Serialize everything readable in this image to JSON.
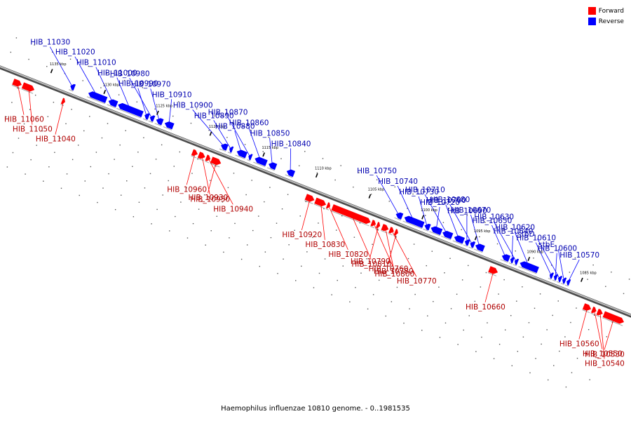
{
  "colors": {
    "forward": "#ff0000",
    "reverse": "#0000ff",
    "backbone": "#808080"
  },
  "legend": [
    {
      "label": "Forward",
      "strand": "forward"
    },
    {
      "label": "Reverse",
      "strand": "reverse"
    }
  ],
  "caption": "Haemophilus influenzae 10810 genome. - 0..1981535",
  "scale": [
    {
      "label": "1135 kbp",
      "pos": 1135
    },
    {
      "label": "1130 kbp",
      "pos": 1130
    },
    {
      "label": "1125 kbp",
      "pos": 1125
    },
    {
      "label": "1120 kbp",
      "pos": 1120
    },
    {
      "label": "1115 kbp",
      "pos": 1115
    },
    {
      "label": "1110 kbp",
      "pos": 1110
    },
    {
      "label": "1105 kbp",
      "pos": 1105
    },
    {
      "label": "1100 kbp",
      "pos": 1100
    },
    {
      "label": "1095 kbp",
      "pos": 1095
    },
    {
      "label": "1090 kbp",
      "pos": 1090
    },
    {
      "label": "1085 kbp",
      "pos": 1085
    }
  ],
  "genes": [
    {
      "name": "HIB_11060",
      "strand": "forward",
      "start": 1137.8,
      "end": 1137.0
    },
    {
      "name": "HIB_11050",
      "strand": "forward",
      "start": 1136.9,
      "end": 1135.8
    },
    {
      "name": "HIB_11040",
      "strand": "forward",
      "start": 1133.2,
      "end": 1132.9
    },
    {
      "name": "HIB_11030",
      "strand": "reverse",
      "start": 1133.0,
      "end": 1132.6
    },
    {
      "name": "HIB_11020",
      "strand": "reverse",
      "start": 1131.3,
      "end": 1129.6
    },
    {
      "name": "HIB_11010",
      "strand": "reverse",
      "start": 1129.4,
      "end": 1128.6
    },
    {
      "name": "HIB_11000",
      "strand": "reverse",
      "start": 1128.5,
      "end": 1126.2
    },
    {
      "name": "HIB_10990",
      "strand": "reverse",
      "start": 1126.0,
      "end": 1125.6
    },
    {
      "name": "HIB_10980",
      "strand": "reverse",
      "start": 1125.5,
      "end": 1125.1
    },
    {
      "name": "HIB_10970",
      "strand": "reverse",
      "start": 1124.9,
      "end": 1124.3
    },
    {
      "name": "HIB_10910",
      "strand": "reverse",
      "start": 1124.1,
      "end": 1123.3
    },
    {
      "name": "HIB_10960",
      "strand": "forward",
      "start": 1120.9,
      "end": 1120.4
    },
    {
      "name": "HIB_10950",
      "strand": "forward",
      "start": 1120.3,
      "end": 1119.7
    },
    {
      "name": "HIB_10940",
      "strand": "forward",
      "start": 1119.6,
      "end": 1119.2
    },
    {
      "name": "HIB_10930",
      "strand": "forward",
      "start": 1119.1,
      "end": 1118.2
    },
    {
      "name": "HIB_10900",
      "strand": "reverse",
      "start": 1118.8,
      "end": 1118.2
    },
    {
      "name": "HIB_10890",
      "strand": "reverse",
      "start": 1118.0,
      "end": 1117.7
    },
    {
      "name": "HIB_10880",
      "strand": "reverse",
      "start": 1117.3,
      "end": 1116.4
    },
    {
      "name": "HIB_10870",
      "strand": "reverse",
      "start": 1116.2,
      "end": 1115.9
    },
    {
      "name": "HIB_10860",
      "strand": "reverse",
      "start": 1115.6,
      "end": 1114.5
    },
    {
      "name": "HIB_10850",
      "strand": "reverse",
      "start": 1114.3,
      "end": 1113.6
    },
    {
      "name": "HIB_10840",
      "strand": "reverse",
      "start": 1112.6,
      "end": 1111.9
    },
    {
      "name": "HIB_10920",
      "strand": "forward",
      "start": 1110.2,
      "end": 1109.4
    },
    {
      "name": "HIB_10830",
      "strand": "forward",
      "start": 1109.3,
      "end": 1108.3
    },
    {
      "name": "HIB_10820",
      "strand": "forward",
      "start": 1108.2,
      "end": 1107.9
    },
    {
      "name": "HIB_10810",
      "strand": "forward",
      "start": 1107.7,
      "end": 1104.1
    },
    {
      "name": "HIB_10800",
      "strand": "forward",
      "start": 1104.0,
      "end": 1103.6
    },
    {
      "name": "HIB_10790",
      "strand": "forward",
      "start": 1103.5,
      "end": 1103.2
    },
    {
      "name": "HIB_10780",
      "strand": "forward",
      "start": 1103.0,
      "end": 1102.4
    },
    {
      "name": "HIB_10770",
      "strand": "forward",
      "start": 1102.3,
      "end": 1101.9
    },
    {
      "name": "HIB_10760",
      "strand": "forward",
      "start": 1101.8,
      "end": 1101.5
    },
    {
      "name": "HIB_10750",
      "strand": "reverse",
      "start": 1102.3,
      "end": 1101.7
    },
    {
      "name": "HIB_10740",
      "strand": "reverse",
      "start": 1101.5,
      "end": 1099.7
    },
    {
      "name": "HIB_10730",
      "strand": "reverse",
      "start": 1099.6,
      "end": 1099.1
    },
    {
      "name": "HIB_10720",
      "strand": "reverse",
      "start": 1099.0,
      "end": 1098.0
    },
    {
      "name": "HIB_10710",
      "strand": "reverse",
      "start": 1097.9,
      "end": 1097.0
    },
    {
      "name": "HIB_10700",
      "strand": "reverse",
      "start": 1096.8,
      "end": 1095.9
    },
    {
      "name": "HIB_10690",
      "strand": "reverse",
      "start": 1095.8,
      "end": 1095.4
    },
    {
      "name": "HIB_10680",
      "strand": "reverse",
      "start": 1095.3,
      "end": 1094.9
    },
    {
      "name": "HIB_10670",
      "strand": "reverse",
      "start": 1094.8,
      "end": 1094.0
    },
    {
      "name": "HIB_10660",
      "strand": "forward",
      "start": 1092.9,
      "end": 1092.1
    },
    {
      "name": "HIB_10650",
      "strand": "reverse",
      "start": 1092.3,
      "end": 1091.6
    },
    {
      "name": "HIB_10640",
      "strand": "reverse",
      "start": 1091.5,
      "end": 1091.2
    },
    {
      "name": "HIB_10630",
      "strand": "reverse",
      "start": 1091.1,
      "end": 1090.8
    },
    {
      "name": "HIB_10620",
      "strand": "reverse",
      "start": 1090.6,
      "end": 1088.9
    },
    {
      "name": "HIB_10610",
      "strand": "reverse",
      "start": 1087.8,
      "end": 1087.5
    },
    {
      "name": "HIB_10600",
      "strand": "reverse",
      "start": 1087.4,
      "end": 1087.1
    },
    {
      "name": "stbD",
      "strand": "reverse",
      "start": 1087.0,
      "end": 1086.7
    },
    {
      "name": "stbE",
      "strand": "reverse",
      "start": 1086.6,
      "end": 1086.3
    },
    {
      "name": "HIB_10570",
      "strand": "reverse",
      "start": 1086.2,
      "end": 1085.9
    },
    {
      "name": "HIB_10560",
      "strand": "forward",
      "start": 1084.0,
      "end": 1083.3
    },
    {
      "name": "HIB_10550",
      "strand": "forward",
      "start": 1083.2,
      "end": 1082.8
    },
    {
      "name": "HIB_10540",
      "strand": "forward",
      "start": 1082.7,
      "end": 1082.2
    },
    {
      "name": "HIB_10530",
      "strand": "forward",
      "start": 1082.1,
      "end": 1080.2
    }
  ]
}
